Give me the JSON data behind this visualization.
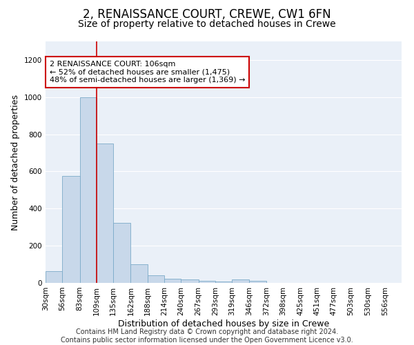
{
  "title1": "2, RENAISSANCE COURT, CREWE, CW1 6FN",
  "title2": "Size of property relative to detached houses in Crewe",
  "xlabel": "Distribution of detached houses by size in Crewe",
  "ylabel": "Number of detached properties",
  "footer1": "Contains HM Land Registry data © Crown copyright and database right 2024.",
  "footer2": "Contains public sector information licensed under the Open Government Licence v3.0.",
  "bin_labels": [
    "30sqm",
    "56sqm",
    "83sqm",
    "109sqm",
    "135sqm",
    "162sqm",
    "188sqm",
    "214sqm",
    "240sqm",
    "267sqm",
    "293sqm",
    "319sqm",
    "346sqm",
    "372sqm",
    "398sqm",
    "425sqm",
    "451sqm",
    "477sqm",
    "503sqm",
    "530sqm",
    "556sqm"
  ],
  "bin_edges": [
    30,
    56,
    83,
    109,
    135,
    162,
    188,
    214,
    240,
    267,
    293,
    319,
    346,
    372,
    398,
    425,
    451,
    477,
    503,
    530,
    556,
    582
  ],
  "bar_heights": [
    65,
    575,
    1000,
    750,
    325,
    100,
    40,
    22,
    18,
    10,
    8,
    18,
    12,
    0,
    0,
    0,
    0,
    0,
    0,
    0,
    0
  ],
  "bar_color": "#c8d8ea",
  "bar_edge_color": "#7baac8",
  "property_line_x": 109,
  "annotation_line1": "2 RENAISSANCE COURT: 106sqm",
  "annotation_line2": "← 52% of detached houses are smaller (1,475)",
  "annotation_line3": "48% of semi-detached houses are larger (1,369) →",
  "annotation_box_color": "#ffffff",
  "annotation_border_color": "#cc0000",
  "line_color": "#cc0000",
  "ylim": [
    0,
    1300
  ],
  "yticks": [
    0,
    200,
    400,
    600,
    800,
    1000,
    1200
  ],
  "background_color": "#eaf0f8",
  "grid_color": "#ffffff",
  "title1_fontsize": 12,
  "title2_fontsize": 10,
  "xlabel_fontsize": 9,
  "ylabel_fontsize": 9,
  "tick_fontsize": 7.5,
  "annotation_fontsize": 8,
  "footer_fontsize": 7
}
